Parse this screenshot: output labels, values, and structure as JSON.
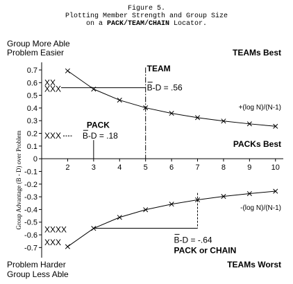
{
  "chart_data": {
    "type": "line",
    "title_lines": [
      "Figure 5.",
      "Plotting Member Strength and Group Size"
    ],
    "title_prefix": "on a ",
    "title_bold": "PACK/TEAM/CHAIN",
    "title_suffix": " Locator.",
    "ylabel": "Group Advantage (B - D) over Problem",
    "corner_labels": {
      "top_left": [
        "Group More Able",
        "Problem Easier"
      ],
      "bottom_left": [
        "Problem Harder",
        "Group Less Able"
      ],
      "top_right": "TEAMs Best",
      "mid_right": "PACKs Best",
      "bottom_right": "TEAMs Worst"
    },
    "x_ticks": [
      2,
      3,
      4,
      5,
      6,
      7,
      8,
      9,
      10
    ],
    "xlim": [
      1,
      10.3
    ],
    "y_ticks": [
      0.7,
      0.6,
      0.5,
      0.4,
      0.3,
      0.2,
      0.1,
      0,
      -0.1,
      -0.2,
      -0.3,
      -0.4,
      -0.5,
      -0.6,
      -0.7
    ],
    "y_tick_labels": [
      "0.7",
      "0.6",
      "0.5",
      "0.4",
      "0.3",
      "0.2",
      "0.1",
      "0",
      "-0.1",
      "-0.2",
      "-0.3",
      "-0.4",
      "-0.5",
      "-0.6",
      "-0.7"
    ],
    "ylim": [
      -0.78,
      0.76
    ],
    "series": [
      {
        "name": "+(log N)/(N-1)",
        "x": [
          2,
          3,
          4,
          5,
          6,
          7,
          8,
          9,
          10
        ],
        "y": [
          0.693,
          0.549,
          0.462,
          0.402,
          0.358,
          0.324,
          0.297,
          0.275,
          0.256
        ]
      },
      {
        "name": "-(log N)/(N-1)",
        "x": [
          2,
          3,
          4,
          5,
          6,
          7,
          8,
          9,
          10
        ],
        "y": [
          -0.693,
          -0.549,
          -0.462,
          -0.402,
          -0.358,
          -0.324,
          -0.297,
          -0.275,
          -0.256
        ]
      }
    ],
    "annotations": {
      "team": {
        "title": "TEAM",
        "bd_text": "B-D = .56",
        "x": 5,
        "y": 0.56
      },
      "pack": {
        "title": "PACK",
        "bd_text": "B-D = .18",
        "x": 3,
        "y": 0.18
      },
      "chain": {
        "title": "PACK or CHAIN",
        "bd_text": "B-D = -.64",
        "x": 7,
        "y": -0.64
      }
    },
    "marks": [
      {
        "text": "XX",
        "y": 0.6
      },
      {
        "text": "XXX",
        "y": 0.55
      },
      {
        "text": "XXX",
        "y": 0.18
      },
      {
        "text": "XXXX",
        "y": -0.56
      },
      {
        "text": "XXX",
        "y": -0.66
      }
    ]
  }
}
